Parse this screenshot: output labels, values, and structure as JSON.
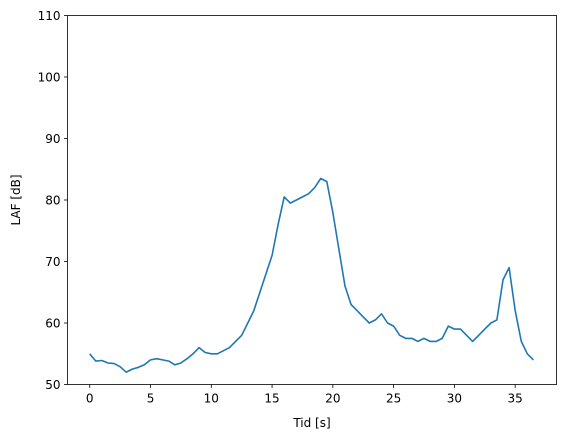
{
  "chart_data": {
    "type": "line",
    "xlabel": "Tid [s]",
    "ylabel": "LAF [dB]",
    "xlim": [
      -1.83,
      38.4
    ],
    "ylim": [
      50,
      110
    ],
    "xticks": [
      "0",
      "5",
      "10",
      "15",
      "20",
      "25",
      "30",
      "35"
    ],
    "yticks": [
      "50",
      "60",
      "70",
      "80",
      "90",
      "100",
      "110"
    ],
    "grid": false,
    "series": [
      {
        "color": "#1f77b4",
        "x": [
          0,
          0.5,
          1,
          1.5,
          2,
          2.5,
          3,
          3.5,
          4,
          4.5,
          5,
          5.5,
          6,
          6.5,
          7,
          7.5,
          8,
          8.5,
          9,
          9.5,
          10,
          10.5,
          11,
          11.5,
          12,
          12.5,
          13,
          13.5,
          14,
          14.5,
          15,
          15.5,
          16,
          16.5,
          17,
          17.5,
          18,
          18.5,
          19,
          19.5,
          20,
          20.5,
          21,
          21.5,
          22,
          22.5,
          23,
          23.5,
          24,
          24.5,
          25,
          25.5,
          26,
          26.5,
          27,
          27.5,
          28,
          28.5,
          29,
          29.5,
          30,
          30.5,
          31,
          31.5,
          32,
          32.5,
          33,
          33.5,
          34,
          34.5,
          35,
          35.5,
          36,
          36.5
        ],
        "y": [
          55.0,
          53.8,
          53.9,
          53.5,
          53.4,
          52.9,
          52.0,
          52.5,
          52.8,
          53.2,
          54.0,
          54.2,
          54.0,
          53.8,
          53.2,
          53.5,
          54.2,
          55.0,
          56.0,
          55.2,
          55.0,
          55.0,
          55.5,
          56.0,
          57.0,
          58.0,
          60.0,
          62.0,
          65.0,
          68.0,
          71.0,
          76.0,
          80.5,
          79.5,
          80.0,
          80.5,
          81.0,
          82.0,
          83.5,
          83.0,
          78.0,
          72.0,
          66.0,
          63.0,
          62.0,
          61.0,
          60.0,
          60.5,
          61.5,
          60.0,
          59.5,
          58.0,
          57.5,
          57.5,
          57.0,
          57.5,
          57.0,
          57.0,
          57.5,
          59.5,
          59.0,
          59.0,
          58.0,
          57.0,
          58.0,
          59.0,
          60.0,
          60.5,
          67.0,
          69.0,
          62.0,
          57.0,
          55.0,
          54.0
        ]
      }
    ]
  }
}
